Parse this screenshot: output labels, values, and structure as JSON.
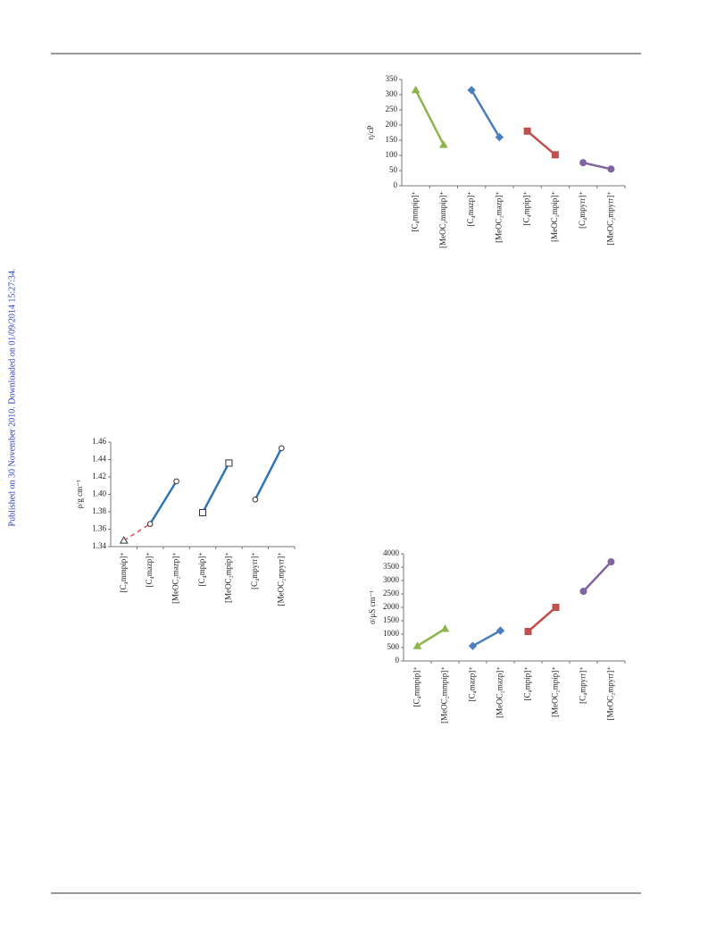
{
  "side_note": "Published on 30 November 2010. Downloaded on 01/09/2014 15:27:34.",
  "chart_data": [
    {
      "type": "line",
      "y_label": "η/cP",
      "categories": [
        "[C₄mmpip]⁺",
        "[MeOC₂mmpip]⁺",
        "[C₄mazp]⁺",
        "[MeOC₂mazp]⁺",
        "[C₄mpip]⁺",
        "[MeOC₂mpip]⁺",
        "[C₄mpyrr]⁺",
        "[MeOC₂mpyrr]⁺"
      ],
      "ylim": [
        0,
        350
      ],
      "yticks": [
        0,
        50,
        100,
        150,
        200,
        250,
        300,
        350
      ],
      "series": [
        {
          "color": "#8db54b",
          "marker": "triangle",
          "values": [
            315,
            135,
            null,
            null,
            null,
            null,
            null,
            null
          ]
        },
        {
          "color": "#4a7ebf",
          "marker": "diamond",
          "values": [
            null,
            null,
            315,
            160,
            null,
            null,
            null,
            null
          ]
        },
        {
          "color": "#c0504d",
          "marker": "square",
          "values": [
            null,
            null,
            null,
            null,
            180,
            102,
            null,
            null
          ]
        },
        {
          "color": "#8064a2",
          "marker": "circle",
          "values": [
            null,
            null,
            null,
            null,
            null,
            null,
            76,
            55
          ]
        }
      ]
    },
    {
      "type": "line",
      "y_label": "ρ/g cm⁻³",
      "categories": [
        "[C₄mmpip]⁺",
        "[C₄mazp]⁺",
        "[MeOC₂mazp]⁺",
        "[C₄mpip]⁺",
        "[MeOC₂mpip]⁺",
        "[C₄mpyrr]⁺",
        "[MeOC₂mpyrr]⁺"
      ],
      "ylim": [
        1.34,
        1.46
      ],
      "yticks": [
        1.34,
        1.36,
        1.38,
        {
          "value": 1.4,
          "label": "1.40"
        },
        1.42,
        1.44,
        1.46
      ],
      "values": [
        1.347,
        1.366,
        1.415,
        1.379,
        1.436,
        1.394,
        1.453
      ],
      "markers": [
        "triangle",
        "circle",
        "circle",
        "square",
        "square",
        "circle",
        "circle"
      ],
      "series": [
        {
          "color": "#e05050",
          "dash": true,
          "values": [
            1.347,
            1.366,
            null,
            null,
            null,
            null,
            null
          ]
        },
        {
          "color": "#4ab070",
          "dash": true,
          "values": [
            null,
            1.366,
            null,
            1.379,
            null,
            1.394,
            null
          ]
        },
        {
          "color": "#4ab070",
          "dash": true,
          "values": [
            null,
            null,
            1.415,
            null,
            1.436,
            null,
            1.453
          ]
        },
        {
          "color": "#2e75b6",
          "dash": false,
          "values": [
            null,
            1.366,
            1.415,
            null,
            null,
            null,
            null
          ]
        },
        {
          "color": "#2e75b6",
          "dash": false,
          "values": [
            null,
            null,
            null,
            1.379,
            1.436,
            null,
            null
          ]
        },
        {
          "color": "#2e75b6",
          "dash": false,
          "values": [
            null,
            null,
            null,
            null,
            null,
            1.394,
            1.453
          ]
        }
      ]
    },
    {
      "type": "line",
      "y_label": "σ/μS cm⁻¹",
      "categories": [
        "[C₄mmpip]⁺",
        "[MeOC₂mmpip]⁺",
        "[C₄mazp]⁺",
        "[MeOC₂mazp]⁺",
        "[C₄mpip]⁺",
        "[MeOC₂mpip]⁺",
        "[C₄mpyrr]⁺",
        "[MeOC₂mpyrr]⁺"
      ],
      "ylim": [
        0,
        4000
      ],
      "yticks": [
        0,
        500,
        1000,
        1500,
        2000,
        2500,
        3000,
        3500,
        4000
      ],
      "series": [
        {
          "color": "#8db54b",
          "marker": "triangle",
          "values": [
            560,
            1200,
            null,
            null,
            null,
            null,
            null,
            null
          ]
        },
        {
          "color": "#4a7ebf",
          "marker": "diamond",
          "values": [
            null,
            null,
            560,
            1130,
            null,
            null,
            null,
            null
          ]
        },
        {
          "color": "#c0504d",
          "marker": "square",
          "values": [
            null,
            null,
            null,
            null,
            1100,
            2000,
            null,
            null
          ]
        },
        {
          "color": "#8064a2",
          "marker": "circle",
          "values": [
            null,
            null,
            null,
            null,
            null,
            null,
            2600,
            3700
          ]
        }
      ]
    }
  ]
}
